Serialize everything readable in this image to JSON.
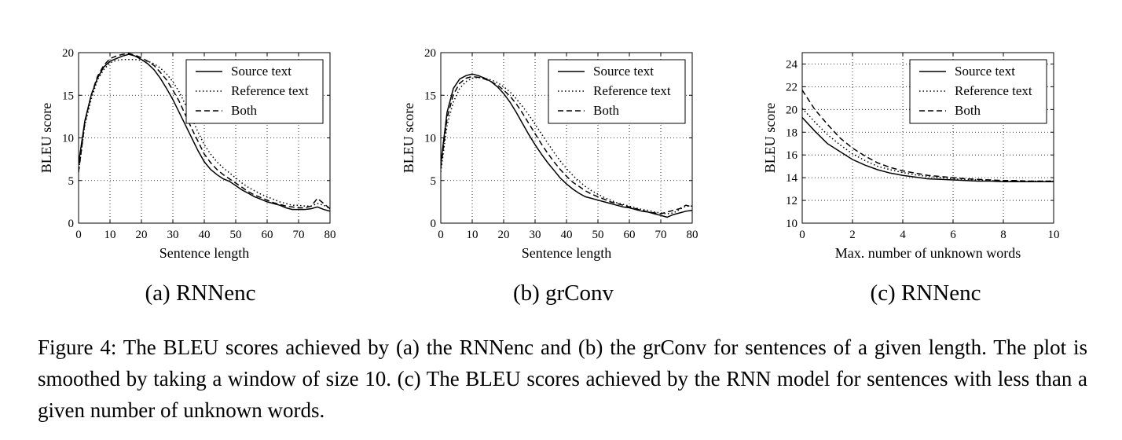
{
  "chart_data": [
    {
      "type": "line",
      "subcaption": "(a) RNNenc",
      "xlabel": "Sentence length",
      "ylabel": "BLEU score",
      "xlim": [
        0,
        80
      ],
      "ylim": [
        0,
        20
      ],
      "xticks": [
        0,
        10,
        20,
        30,
        40,
        50,
        60,
        70,
        80
      ],
      "yticks": [
        0,
        5,
        10,
        15,
        20
      ],
      "grid": true,
      "legend_position": "top-right",
      "series": [
        {
          "name": "Source text",
          "style": "solid",
          "x": [
            0,
            2,
            4,
            6,
            8,
            10,
            12,
            14,
            16,
            18,
            20,
            22,
            24,
            26,
            28,
            30,
            32,
            34,
            36,
            38,
            40,
            42,
            44,
            46,
            48,
            50,
            52,
            54,
            56,
            58,
            60,
            62,
            64,
            66,
            68,
            70,
            72,
            74,
            76,
            78,
            80
          ],
          "y": [
            7,
            12,
            15,
            17,
            18.3,
            19,
            19.3,
            19.6,
            19.8,
            19.6,
            19.2,
            18.7,
            18,
            17,
            15.8,
            14.5,
            13,
            11.5,
            10,
            8.5,
            7.2,
            6.3,
            5.7,
            5.2,
            4.9,
            4.4,
            3.9,
            3.5,
            3.1,
            2.8,
            2.5,
            2.3,
            2.1,
            1.8,
            1.6,
            1.6,
            1.6,
            1.7,
            1.9,
            1.6,
            1.4
          ]
        },
        {
          "name": "Reference text",
          "style": "dotted",
          "x": [
            0,
            2,
            4,
            6,
            8,
            10,
            12,
            14,
            16,
            18,
            20,
            22,
            24,
            26,
            28,
            30,
            32,
            34,
            36,
            38,
            40,
            42,
            44,
            46,
            48,
            50,
            52,
            54,
            56,
            58,
            60,
            62,
            64,
            66,
            68,
            70,
            72,
            74,
            76,
            78,
            80
          ],
          "y": [
            6,
            11.5,
            14.5,
            16.8,
            18,
            18.8,
            19.1,
            19.2,
            19.2,
            19.2,
            19.1,
            19,
            18.7,
            18.2,
            17.5,
            16.6,
            15.4,
            13.9,
            12.3,
            10.7,
            9.2,
            8.1,
            7.2,
            6.5,
            5.9,
            5.3,
            4.7,
            4.2,
            3.8,
            3.4,
            3.1,
            2.8,
            2.5,
            2.3,
            2.1,
            2.1,
            2,
            2,
            2.3,
            2.1,
            1.7
          ]
        },
        {
          "name": "Both",
          "style": "dashed",
          "x": [
            0,
            2,
            4,
            6,
            8,
            10,
            12,
            14,
            16,
            18,
            20,
            22,
            24,
            26,
            28,
            30,
            32,
            34,
            36,
            38,
            40,
            42,
            44,
            46,
            48,
            50,
            52,
            54,
            56,
            58,
            60,
            62,
            64,
            66,
            68,
            70,
            72,
            74,
            76,
            78,
            80
          ],
          "y": [
            6,
            11.8,
            15,
            17.2,
            18.5,
            19.3,
            19.6,
            19.8,
            19.9,
            19.7,
            19.4,
            19,
            18.5,
            17.7,
            16.8,
            15.6,
            14.3,
            12.7,
            11.1,
            9.6,
            8.1,
            7.1,
            6.3,
            5.7,
            5.2,
            4.7,
            4.2,
            3.7,
            3.3,
            3,
            2.7,
            2.4,
            2.2,
            2,
            1.9,
            1.8,
            1.8,
            2,
            2.9,
            2.3,
            1.7
          ]
        }
      ]
    },
    {
      "type": "line",
      "subcaption": "(b) grConv",
      "xlabel": "Sentence length",
      "ylabel": "BLEU score",
      "xlim": [
        0,
        80
      ],
      "ylim": [
        0,
        20
      ],
      "xticks": [
        0,
        10,
        20,
        30,
        40,
        50,
        60,
        70,
        80
      ],
      "yticks": [
        0,
        5,
        10,
        15,
        20
      ],
      "grid": true,
      "legend_position": "top-right",
      "series": [
        {
          "name": "Source text",
          "style": "solid",
          "x": [
            0,
            2,
            4,
            6,
            8,
            10,
            12,
            14,
            16,
            18,
            20,
            22,
            24,
            26,
            28,
            30,
            32,
            34,
            36,
            38,
            40,
            42,
            44,
            46,
            48,
            50,
            52,
            54,
            56,
            58,
            60,
            62,
            64,
            66,
            68,
            70,
            72,
            74,
            76,
            78,
            80
          ],
          "y": [
            7,
            13,
            15.8,
            16.9,
            17.3,
            17.5,
            17.3,
            17,
            16.6,
            16,
            15.2,
            14.2,
            13,
            11.7,
            10.4,
            9.2,
            8.1,
            7.1,
            6.2,
            5.3,
            4.6,
            4,
            3.5,
            3.1,
            2.9,
            2.7,
            2.5,
            2.3,
            2.1,
            1.9,
            1.8,
            1.6,
            1.4,
            1.3,
            1.1,
            0.9,
            0.7,
            1,
            1.2,
            1.4,
            1.5
          ]
        },
        {
          "name": "Reference text",
          "style": "dotted",
          "x": [
            0,
            2,
            4,
            6,
            8,
            10,
            12,
            14,
            16,
            18,
            20,
            22,
            24,
            26,
            28,
            30,
            32,
            34,
            36,
            38,
            40,
            42,
            44,
            46,
            48,
            50,
            52,
            54,
            56,
            58,
            60,
            62,
            64,
            66,
            68,
            70,
            72,
            74,
            76,
            78,
            80
          ],
          "y": [
            6,
            11.5,
            14.2,
            15.8,
            16.6,
            17,
            17.1,
            17,
            16.8,
            16.5,
            16,
            15.4,
            14.6,
            13.7,
            12.7,
            11.6,
            10.5,
            9.4,
            8.3,
            7.3,
            6.4,
            5.6,
            4.9,
            4.3,
            3.8,
            3.4,
            3,
            2.7,
            2.4,
            2.2,
            2,
            1.8,
            1.6,
            1.5,
            1.3,
            1.2,
            1.1,
            1.2,
            1.6,
            2,
            2
          ]
        },
        {
          "name": "Both",
          "style": "dashed",
          "x": [
            0,
            2,
            4,
            6,
            8,
            10,
            12,
            14,
            16,
            18,
            20,
            22,
            24,
            26,
            28,
            30,
            32,
            34,
            36,
            38,
            40,
            42,
            44,
            46,
            48,
            50,
            52,
            54,
            56,
            58,
            60,
            62,
            64,
            66,
            68,
            70,
            72,
            74,
            76,
            78,
            80
          ],
          "y": [
            6.5,
            12.3,
            15.1,
            16.4,
            17,
            17.2,
            17.1,
            16.9,
            16.6,
            16.2,
            15.6,
            14.9,
            14,
            12.9,
            11.7,
            10.5,
            9.3,
            8.2,
            7.2,
            6.3,
            5.5,
            4.8,
            4.3,
            3.8,
            3.4,
            3.1,
            2.8,
            2.5,
            2.3,
            2.1,
            1.9,
            1.7,
            1.5,
            1.3,
            1.2,
            1.1,
            1.3,
            1.5,
            1.7,
            2.1,
            1.9
          ]
        }
      ]
    },
    {
      "type": "line",
      "subcaption": "(c) RNNenc",
      "xlabel": "Max. number of unknown words",
      "ylabel": "BLEU score",
      "xlim": [
        0,
        10
      ],
      "ylim": [
        10,
        25
      ],
      "xticks": [
        0,
        2,
        4,
        6,
        8,
        10
      ],
      "yticks": [
        10,
        12,
        14,
        16,
        18,
        20,
        22,
        24
      ],
      "grid": true,
      "legend_position": "top-right",
      "series": [
        {
          "name": "Source text",
          "style": "solid",
          "x": [
            0,
            0.5,
            1,
            1.5,
            2,
            2.5,
            3,
            3.5,
            4,
            4.5,
            5,
            5.5,
            6,
            6.5,
            7,
            7.5,
            8,
            8.5,
            9,
            9.5,
            10
          ],
          "y": [
            19.3,
            18.1,
            17,
            16.3,
            15.6,
            15.1,
            14.7,
            14.4,
            14.2,
            14.05,
            13.9,
            13.85,
            13.8,
            13.75,
            13.7,
            13.7,
            13.65,
            13.65,
            13.65,
            13.65,
            13.65
          ]
        },
        {
          "name": "Reference text",
          "style": "dotted",
          "x": [
            0,
            0.5,
            1,
            1.5,
            2,
            2.5,
            3,
            3.5,
            4,
            4.5,
            5,
            5.5,
            6,
            6.5,
            7,
            7.5,
            8,
            8.5,
            9,
            9.5,
            10
          ],
          "y": [
            20.1,
            18.9,
            17.8,
            16.9,
            16.1,
            15.5,
            15,
            14.7,
            14.45,
            14.25,
            14.1,
            14,
            13.9,
            13.85,
            13.8,
            13.75,
            13.7,
            13.7,
            13.7,
            13.7,
            13.7
          ]
        },
        {
          "name": "Both",
          "style": "dashed",
          "x": [
            0,
            0.5,
            1,
            1.5,
            2,
            2.5,
            3,
            3.5,
            4,
            4.5,
            5,
            5.5,
            6,
            6.5,
            7,
            7.5,
            8,
            8.5,
            9,
            9.5,
            10
          ],
          "y": [
            21.7,
            20,
            18.7,
            17.5,
            16.6,
            15.9,
            15.3,
            14.9,
            14.6,
            14.4,
            14.2,
            14.1,
            14,
            13.9,
            13.85,
            13.8,
            13.75,
            13.75,
            13.7,
            13.7,
            13.7
          ]
        }
      ]
    }
  ],
  "caption": "Figure 4: The BLEU scores achieved by (a) the RNNenc and (b) the grConv for sentences of a given length. The plot is smoothed by taking a window of size 10. (c) The BLEU scores achieved by the RNN model for sentences with less than a given number of unknown words."
}
